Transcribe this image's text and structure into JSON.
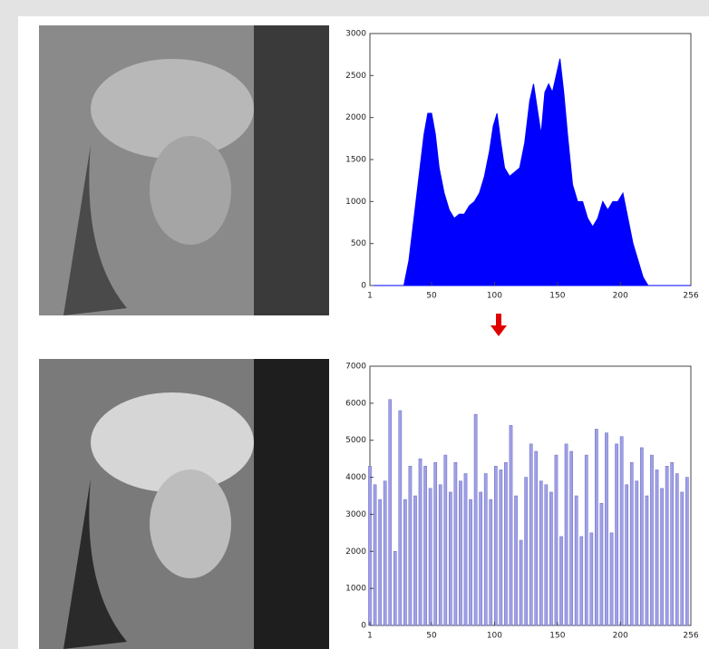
{
  "chart_data": [
    {
      "type": "area",
      "color": "#0000ff",
      "x": [
        1,
        28,
        32,
        36,
        40,
        44,
        47,
        50,
        53,
        56,
        60,
        64,
        68,
        72,
        76,
        80,
        84,
        88,
        92,
        96,
        99,
        102,
        105,
        108,
        112,
        116,
        120,
        124,
        128,
        131,
        134,
        137,
        140,
        143,
        146,
        149,
        152,
        155,
        158,
        162,
        166,
        170,
        174,
        178,
        182,
        186,
        190,
        194,
        198,
        202,
        206,
        210,
        214,
        218,
        222,
        256
      ],
      "values": [
        0,
        0,
        300,
        800,
        1300,
        1800,
        2050,
        2050,
        1800,
        1400,
        1100,
        900,
        800,
        850,
        850,
        950,
        1000,
        1100,
        1300,
        1600,
        1900,
        2050,
        1700,
        1400,
        1300,
        1350,
        1400,
        1700,
        2200,
        2400,
        2100,
        1800,
        2300,
        2400,
        2300,
        2500,
        2700,
        2300,
        1800,
        1200,
        1000,
        1000,
        800,
        700,
        800,
        1000,
        900,
        1000,
        1000,
        1100,
        800,
        500,
        300,
        100,
        0,
        0
      ],
      "xlim": [
        1,
        256
      ],
      "xticks": [
        1,
        50,
        100,
        150,
        200,
        256
      ],
      "ylim": [
        0,
        3000
      ],
      "yticks": [
        0,
        500,
        1000,
        1500,
        2000,
        2500,
        3000
      ]
    },
    {
      "type": "bar",
      "color": "#a0a0e6",
      "x": [
        1,
        5,
        9,
        13,
        17,
        21,
        25,
        29,
        33,
        37,
        41,
        45,
        49,
        53,
        57,
        61,
        65,
        69,
        73,
        77,
        81,
        85,
        89,
        93,
        97,
        101,
        105,
        109,
        113,
        117,
        121,
        125,
        129,
        133,
        137,
        141,
        145,
        149,
        153,
        157,
        161,
        165,
        169,
        173,
        177,
        181,
        185,
        189,
        193,
        197,
        201,
        205,
        209,
        213,
        217,
        221,
        225,
        229,
        233,
        237,
        241,
        245,
        249,
        253
      ],
      "values": [
        4300,
        3800,
        3400,
        3900,
        6100,
        2000,
        5800,
        3400,
        4300,
        3500,
        4500,
        4300,
        3700,
        4400,
        3800,
        4600,
        3600,
        4400,
        3900,
        4100,
        3400,
        5700,
        3600,
        4100,
        3400,
        4300,
        4200,
        4400,
        5400,
        3500,
        2300,
        4000,
        4900,
        4700,
        3900,
        3800,
        3600,
        4600,
        2400,
        4900,
        4700,
        3500,
        2400,
        4600,
        2500,
        5300,
        3300,
        5200,
        2500,
        4900,
        5100,
        3800,
        4400,
        3900,
        4800,
        3500,
        4600,
        4200,
        3700,
        4300,
        4400,
        4100,
        3600,
        4000
      ],
      "xlim": [
        1,
        256
      ],
      "xticks": [
        1,
        50,
        100,
        150,
        200,
        256
      ],
      "ylim": [
        0,
        7000
      ],
      "yticks": [
        0,
        1000,
        2000,
        3000,
        4000,
        5000,
        6000,
        7000
      ]
    }
  ]
}
